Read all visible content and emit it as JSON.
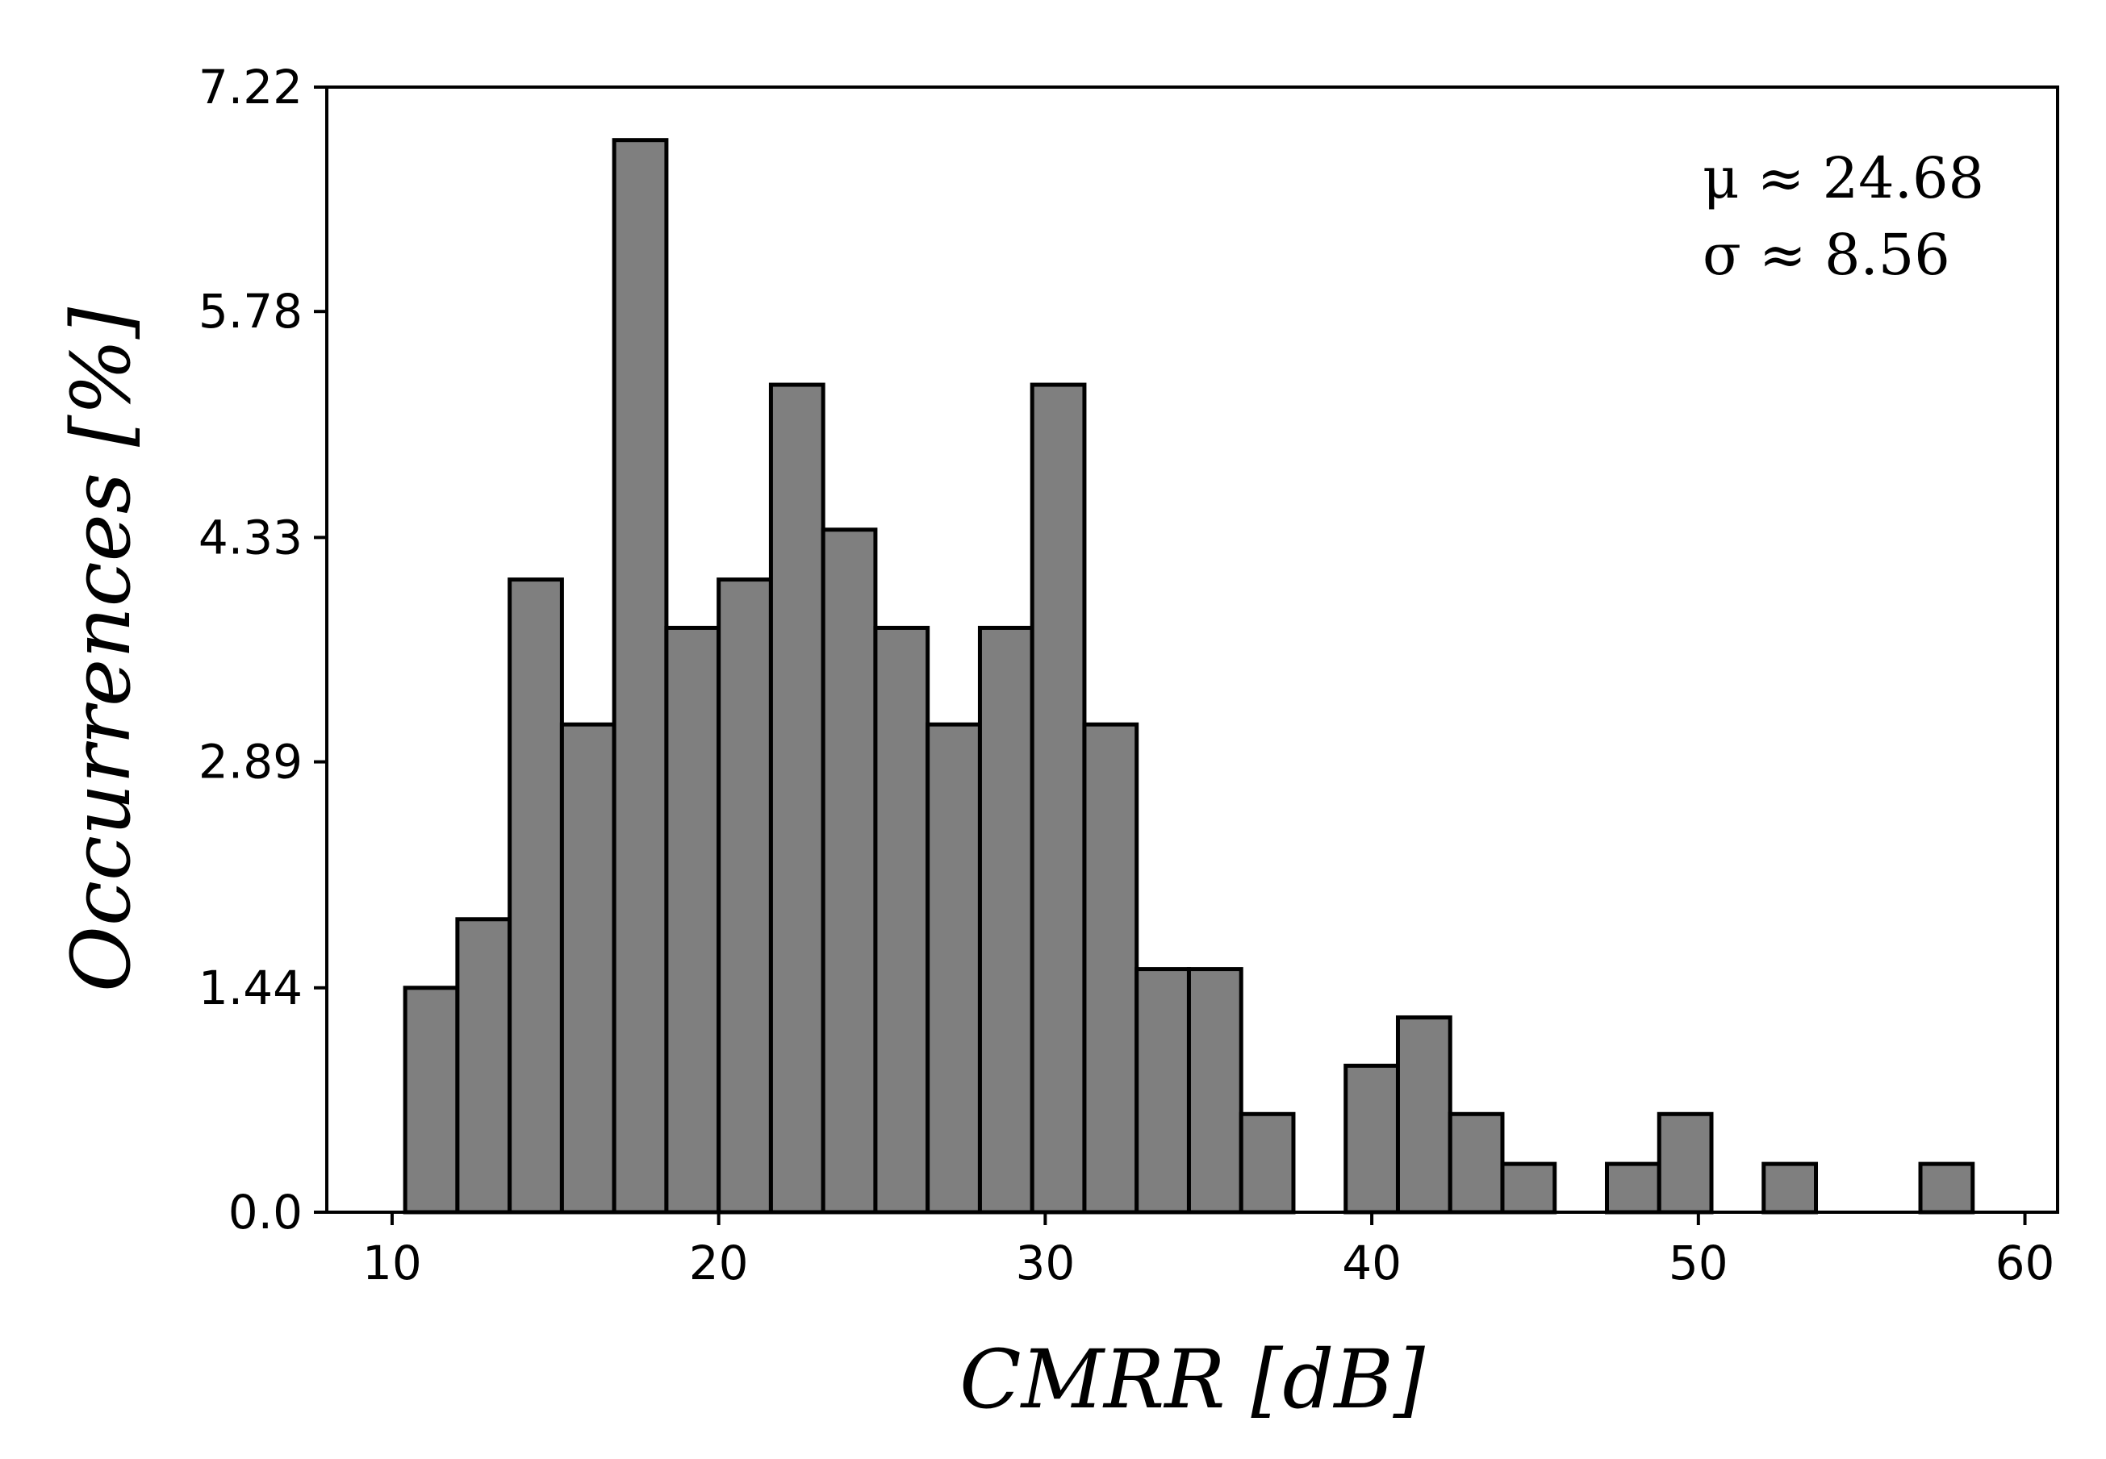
{
  "chart_data": {
    "type": "bar",
    "title": "",
    "xlabel": "CMRR [dB]",
    "ylabel": "Occurrences [%]",
    "xlim": [
      8,
      61
    ],
    "ylim": [
      0,
      7.22
    ],
    "xticks": [
      "10",
      "20",
      "30",
      "40",
      "50",
      "60"
    ],
    "yticks": [
      "0.0",
      "1.44",
      "2.89",
      "4.33",
      "5.78",
      "7.22"
    ],
    "grid": false,
    "legend": "none",
    "bar_color": "#7f7f7f",
    "bin_width": 1.6,
    "bins": [
      {
        "x": 10.4,
        "y": 1.44
      },
      {
        "x": 12.0,
        "y": 1.88
      },
      {
        "x": 13.6,
        "y": 4.06
      },
      {
        "x": 15.2,
        "y": 3.13
      },
      {
        "x": 16.8,
        "y": 6.88
      },
      {
        "x": 18.4,
        "y": 3.75
      },
      {
        "x": 20.0,
        "y": 4.06
      },
      {
        "x": 21.6,
        "y": 5.31
      },
      {
        "x": 23.2,
        "y": 4.38
      },
      {
        "x": 24.8,
        "y": 3.75
      },
      {
        "x": 26.4,
        "y": 3.13
      },
      {
        "x": 28.0,
        "y": 3.75
      },
      {
        "x": 29.6,
        "y": 5.31
      },
      {
        "x": 31.2,
        "y": 3.13
      },
      {
        "x": 32.8,
        "y": 1.56
      },
      {
        "x": 34.4,
        "y": 1.56
      },
      {
        "x": 36.0,
        "y": 0.63
      },
      {
        "x": 39.2,
        "y": 0.94
      },
      {
        "x": 40.8,
        "y": 1.25
      },
      {
        "x": 42.4,
        "y": 0.63
      },
      {
        "x": 44.0,
        "y": 0.31
      },
      {
        "x": 47.2,
        "y": 0.31
      },
      {
        "x": 48.8,
        "y": 0.63
      },
      {
        "x": 52.0,
        "y": 0.31
      },
      {
        "x": 56.8,
        "y": 0.31
      }
    ],
    "annotations": [
      "μ ≈ 24.68",
      "σ ≈ 8.56"
    ],
    "annotation_placement": "top-right"
  }
}
